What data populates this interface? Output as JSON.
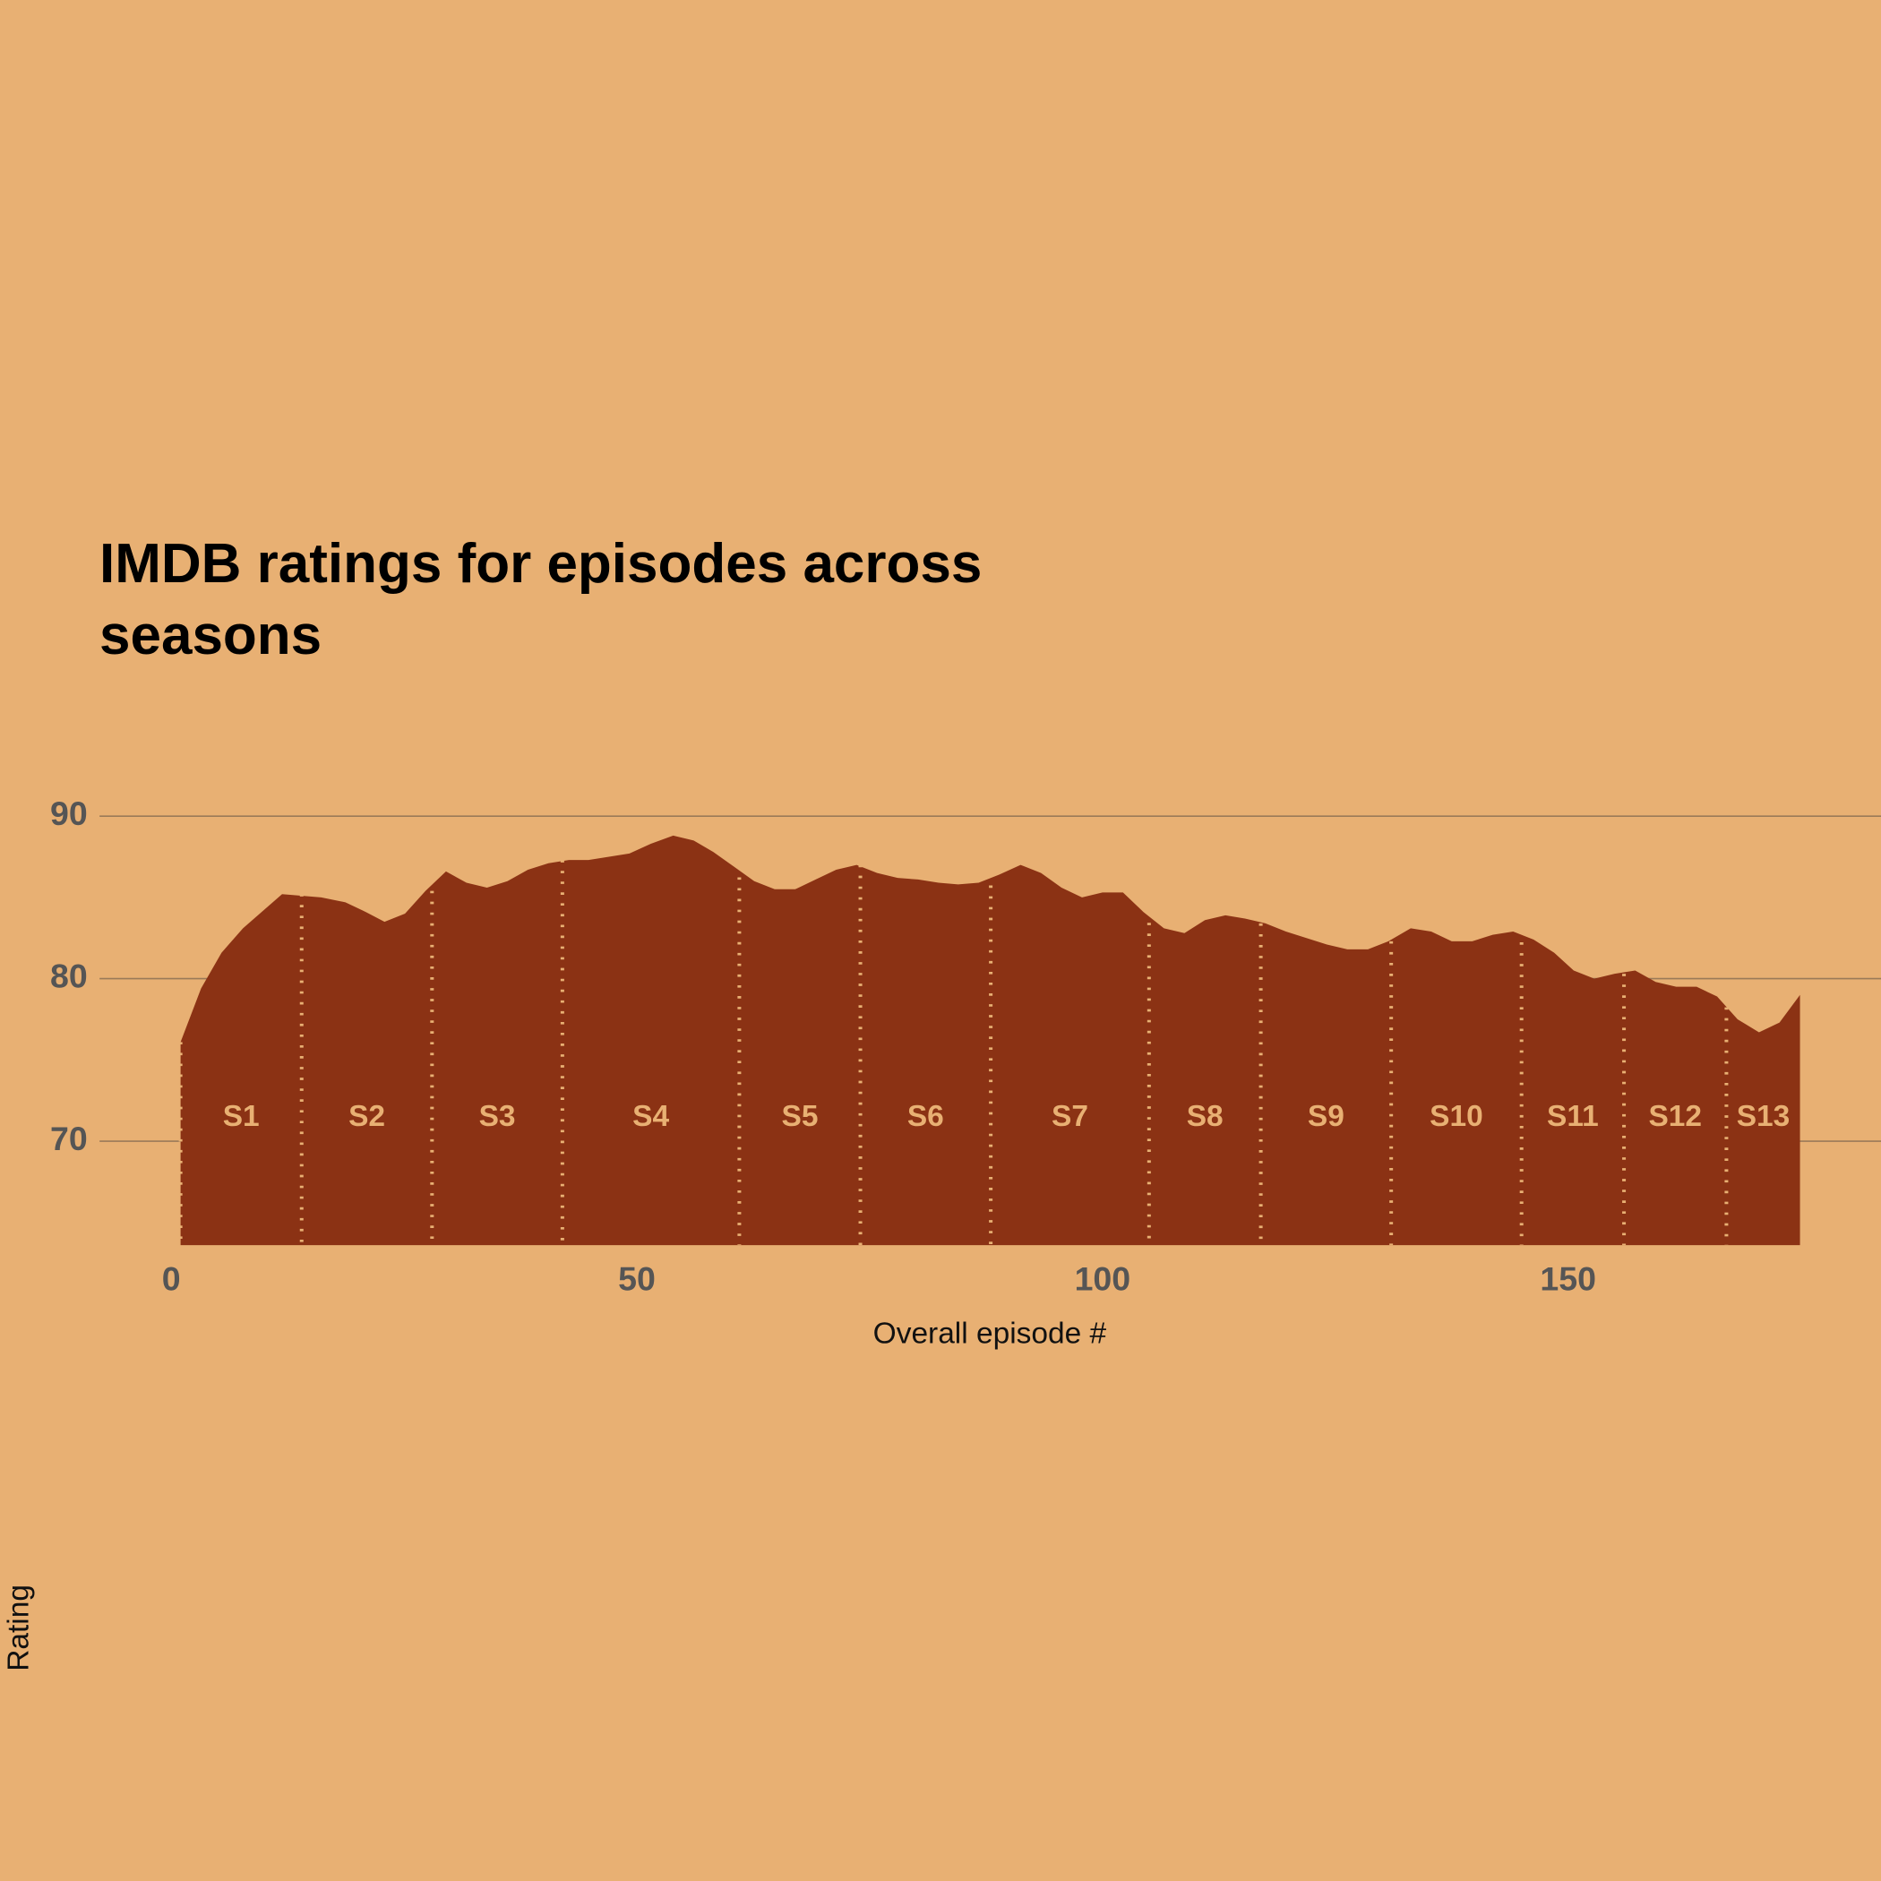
{
  "chart_data": {
    "type": "area",
    "title": "IMDB ratings for episodes across seasons",
    "xlabel": "Overall episode #",
    "ylabel": "Rating",
    "color": "#8B3214",
    "background": "#E8B073",
    "x": [
      1,
      3.2,
      5.4,
      7.7,
      11.9,
      16.1,
      18.7,
      20.9,
      22.9,
      25.1,
      27.3,
      29.5,
      31.7,
      33.9,
      36.1,
      38.3,
      40.5,
      42.7,
      44.8,
      47,
      49.2,
      51.5,
      53.9,
      56.1,
      58.2,
      60.4,
      62.6,
      64.8,
      67,
      69.2,
      71.4,
      73.6,
      75.8,
      78,
      80.2,
      82.4,
      84.5,
      86.7,
      88.9,
      91.2,
      93.4,
      95.6,
      97.8,
      100,
      102.2,
      104.4,
      106.6,
      108.8,
      111,
      113.2,
      115.3,
      117.5,
      119.7,
      121.9,
      124.1,
      126.3,
      128.5,
      130.7,
      133.1,
      135.3,
      137.5,
      139.7,
      141.9,
      144.1,
      146.3,
      148.5,
      150.6,
      152.8,
      155,
      157.2,
      159.4,
      161.6,
      163.8,
      166,
      168.2,
      170.5,
      172.7,
      174.9
    ],
    "values": [
      76.1,
      79.4,
      81.6,
      83.1,
      85.2,
      85.0,
      84.7,
      84.1,
      83.5,
      84.0,
      85.4,
      86.6,
      85.9,
      85.6,
      86.0,
      86.7,
      87.1,
      87.3,
      87.3,
      87.5,
      87.7,
      88.3,
      88.8,
      88.5,
      87.8,
      86.9,
      86.0,
      85.5,
      85.5,
      86.1,
      86.7,
      87.0,
      86.5,
      86.2,
      86.1,
      85.9,
      85.8,
      85.9,
      86.4,
      87.0,
      86.5,
      85.6,
      85.0,
      85.3,
      85.3,
      84.1,
      83.1,
      82.8,
      83.6,
      83.9,
      83.7,
      83.4,
      82.9,
      82.5,
      82.1,
      81.8,
      81.8,
      82.3,
      83.1,
      82.9,
      82.3,
      82.3,
      82.7,
      82.9,
      82.4,
      81.6,
      80.5,
      80.0,
      80.3,
      80.5,
      79.8,
      79.5,
      79.5,
      78.9,
      77.5,
      76.7,
      77.3,
      79.0
    ],
    "season_starts": [
      1,
      14,
      28,
      42,
      61,
      74,
      88,
      105,
      117,
      131,
      145,
      156,
      167
    ],
    "season_labels": [
      "S1",
      "S2",
      "S3",
      "S4",
      "S5",
      "S6",
      "S7",
      "S8",
      "S9",
      "S10",
      "S11",
      "S12",
      "S13"
    ],
    "xlim": [
      -7.7,
      183.6
    ],
    "xticks": [
      0,
      50,
      100,
      150
    ],
    "ylim": [
      63.6,
      91.5
    ],
    "yticks": [
      70,
      80,
      90
    ],
    "grid": true
  }
}
